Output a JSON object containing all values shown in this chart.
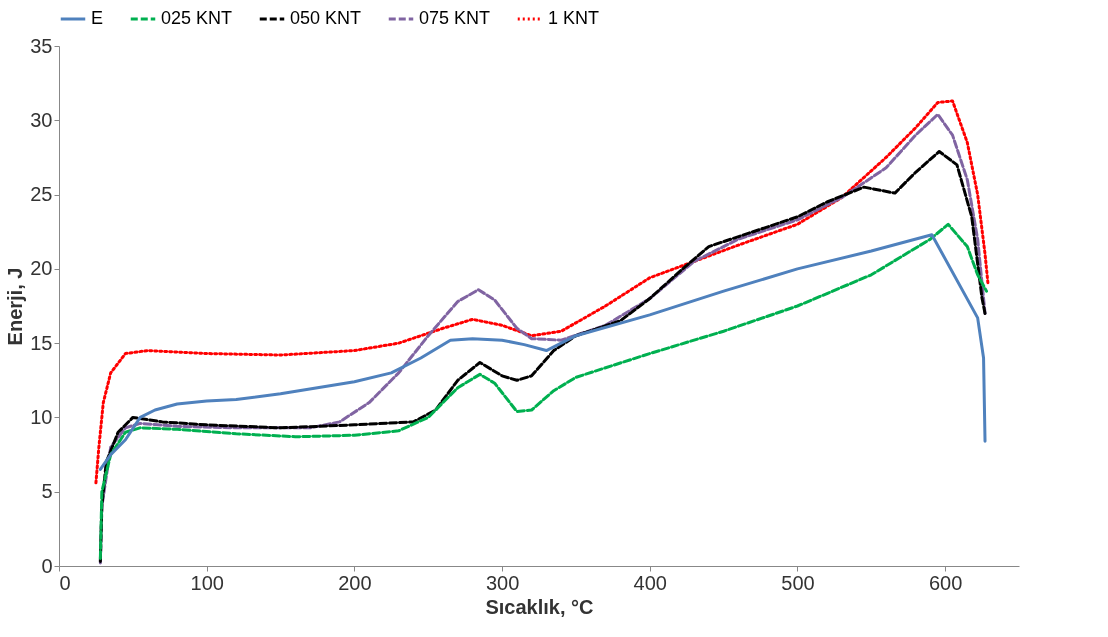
{
  "chart_data": {
    "type": "line",
    "xlabel": "Sıcaklık, °C",
    "ylabel": "Enerji, J",
    "xlim": [
      0,
      650
    ],
    "xticks": [
      0,
      100,
      200,
      300,
      400,
      500,
      600
    ],
    "ylim": [
      0,
      35
    ],
    "yticks": [
      0,
      5,
      10,
      15,
      20,
      25,
      30,
      35
    ],
    "grid": false,
    "legend": "top",
    "marker": "none",
    "series": [
      {
        "name": "E",
        "color": "#4f81bd",
        "line_style": "solid",
        "x": [
          28,
          35,
          45,
          55,
          65,
          80,
          100,
          120,
          150,
          175,
          200,
          225,
          245,
          265,
          280,
          300,
          315,
          330,
          350,
          400,
          450,
          500,
          550,
          591,
          622,
          626,
          627
        ],
        "values": [
          6.5,
          7.5,
          8.5,
          10,
          10.5,
          10.9,
          11.1,
          11.2,
          11.6,
          12,
          12.4,
          13,
          14,
          15.2,
          15.3,
          15.2,
          14.9,
          14.5,
          15.5,
          16.9,
          18.5,
          20,
          21.2,
          22.3,
          16.7,
          14,
          8.4
        ]
      },
      {
        "name": "025 KNT",
        "color": "#00b050",
        "line_style": "dashed",
        "x": [
          28,
          29,
          35,
          45,
          55,
          80,
          120,
          160,
          200,
          230,
          250,
          270,
          285,
          295,
          310,
          320,
          335,
          350,
          400,
          450,
          500,
          550,
          590,
          602,
          615,
          622,
          628
        ],
        "values": [
          0.5,
          5,
          7.5,
          9,
          9.3,
          9.2,
          8.9,
          8.7,
          8.8,
          9.1,
          10,
          12,
          12.9,
          12.3,
          10.4,
          10.5,
          11.8,
          12.7,
          14.3,
          15.8,
          17.5,
          19.6,
          22,
          23,
          21.5,
          19.6,
          18.5
        ]
      },
      {
        "name": "050 KNT",
        "color": "#000000",
        "line_style": "dashed",
        "x": [
          28,
          29,
          32,
          40,
          50,
          70,
          100,
          150,
          200,
          240,
          255,
          270,
          285,
          300,
          310,
          320,
          335,
          350,
          380,
          400,
          420,
          440,
          470,
          500,
          520,
          545,
          566,
          580,
          596,
          608,
          618,
          625,
          627
        ],
        "values": [
          0.3,
          4,
          7,
          9,
          10,
          9.7,
          9.5,
          9.3,
          9.5,
          9.7,
          10.5,
          12.5,
          13.7,
          12.8,
          12.5,
          12.8,
          14.5,
          15.5,
          16.5,
          18,
          19.8,
          21.5,
          22.5,
          23.5,
          24.5,
          25.5,
          25.1,
          26.5,
          27.9,
          27,
          23.5,
          18,
          17
        ]
      },
      {
        "name": "075 KNT",
        "color": "#8064a2",
        "line_style": "dashed",
        "x": [
          28,
          29,
          35,
          45,
          55,
          80,
          120,
          170,
          190,
          210,
          230,
          250,
          270,
          284,
          295,
          310,
          320,
          340,
          370,
          400,
          430,
          460,
          500,
          530,
          560,
          580,
          595,
          605,
          615,
          622,
          627
        ],
        "values": [
          0.2,
          4,
          8,
          9.3,
          9.6,
          9.4,
          9.3,
          9.3,
          9.7,
          11,
          13,
          15.5,
          17.8,
          18.6,
          17.9,
          16,
          15.3,
          15.2,
          16.2,
          18,
          20.5,
          22,
          23.3,
          24.8,
          26.8,
          29,
          30.4,
          29,
          26,
          22,
          17
        ]
      },
      {
        "name": "1 KNT",
        "color": "#ff0000",
        "line_style": "dotted",
        "x": [
          25,
          27,
          30,
          35,
          45,
          60,
          100,
          150,
          200,
          230,
          260,
          280,
          300,
          320,
          340,
          370,
          400,
          430,
          460,
          500,
          530,
          560,
          580,
          595,
          605,
          615,
          622,
          627,
          629
        ],
        "values": [
          5.6,
          8,
          11,
          13,
          14.3,
          14.5,
          14.3,
          14.2,
          14.5,
          15,
          16,
          16.6,
          16.2,
          15.5,
          15.8,
          17.5,
          19.4,
          20.5,
          21.6,
          23,
          24.8,
          27.5,
          29.5,
          31.2,
          31.3,
          28.5,
          25,
          21,
          19
        ]
      }
    ]
  }
}
